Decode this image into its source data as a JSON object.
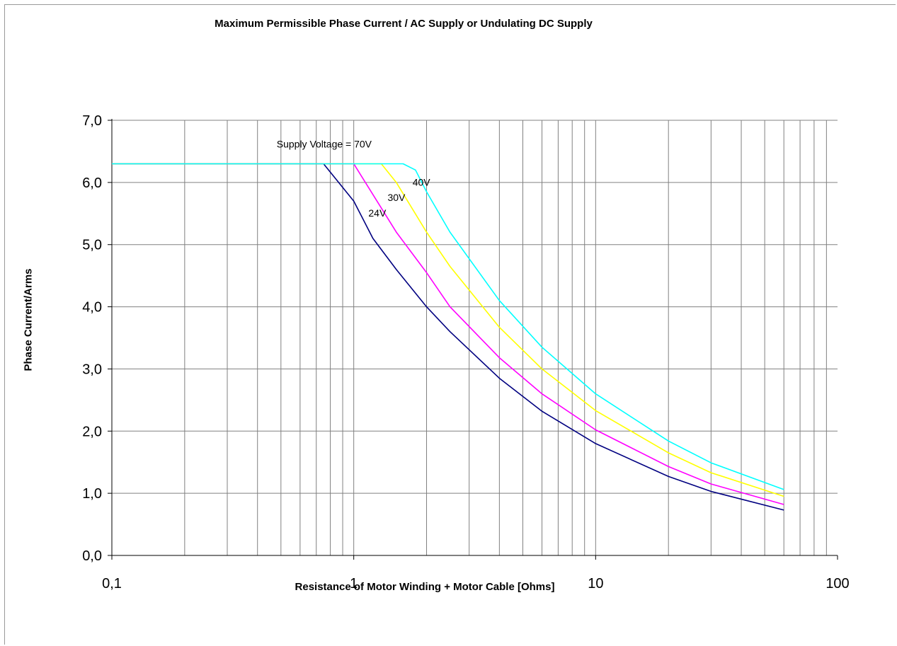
{
  "chart_data": {
    "type": "line",
    "title": "Maximum Permissible Phase Current / AC Supply or Undulating DC Supply",
    "xlabel": "Resistance of Motor Winding + Motor Cable [Ohms]",
    "ylabel": "Phase Current/Arms",
    "x_scale": "log",
    "xlim": [
      0.1,
      100
    ],
    "ylim": [
      0,
      7
    ],
    "x_ticks": [
      "0,1",
      "1",
      "10",
      "100"
    ],
    "y_ticks": [
      "0,0",
      "1,0",
      "2,0",
      "3,0",
      "4,0",
      "5,0",
      "6,0",
      "7,0"
    ],
    "grid": true,
    "legend": "none",
    "series": [
      {
        "color": "#000080",
        "points": [
          [
            0.1,
            6.3
          ],
          [
            0.75,
            6.3
          ],
          [
            1.0,
            5.7
          ],
          [
            1.2,
            5.1
          ],
          [
            1.5,
            4.6
          ],
          [
            2.0,
            4.0
          ],
          [
            2.5,
            3.6
          ],
          [
            4.0,
            2.85
          ],
          [
            6.0,
            2.32
          ],
          [
            10.0,
            1.8
          ],
          [
            20.0,
            1.27
          ],
          [
            30.0,
            1.03
          ],
          [
            60.0,
            0.73
          ]
        ]
      },
      {
        "color": "#ff00ff",
        "points": [
          [
            0.1,
            6.3
          ],
          [
            1.0,
            6.3
          ],
          [
            1.5,
            5.2
          ],
          [
            2.0,
            4.55
          ],
          [
            2.5,
            4.0
          ],
          [
            4.0,
            3.18
          ],
          [
            6.0,
            2.6
          ],
          [
            10.0,
            2.02
          ],
          [
            20.0,
            1.43
          ],
          [
            30.0,
            1.15
          ],
          [
            60.0,
            0.82
          ]
        ]
      },
      {
        "color": "#ffff00",
        "points": [
          [
            0.1,
            6.3
          ],
          [
            1.3,
            6.3
          ],
          [
            1.5,
            6.0
          ],
          [
            2.0,
            5.2
          ],
          [
            2.5,
            4.65
          ],
          [
            4.0,
            3.67
          ],
          [
            6.0,
            3.0
          ],
          [
            10.0,
            2.33
          ],
          [
            20.0,
            1.65
          ],
          [
            30.0,
            1.33
          ],
          [
            60.0,
            0.95
          ]
        ]
      },
      {
        "color": "#00ffff",
        "points": [
          [
            0.1,
            6.3
          ],
          [
            1.6,
            6.3
          ],
          [
            1.8,
            6.2
          ],
          [
            2.0,
            5.85
          ],
          [
            2.5,
            5.2
          ],
          [
            4.0,
            4.1
          ],
          [
            6.0,
            3.35
          ],
          [
            10.0,
            2.6
          ],
          [
            20.0,
            1.84
          ],
          [
            30.0,
            1.49
          ],
          [
            60.0,
            1.06
          ]
        ]
      }
    ],
    "annotations": [
      {
        "text": "Supply Voltage = 70V",
        "x": 0.48,
        "y": 6.56
      },
      {
        "text": "40V",
        "x": 1.75,
        "y": 5.95
      },
      {
        "text": "30V",
        "x": 1.38,
        "y": 5.7
      },
      {
        "text": "24V",
        "x": 1.15,
        "y": 5.45
      }
    ]
  }
}
